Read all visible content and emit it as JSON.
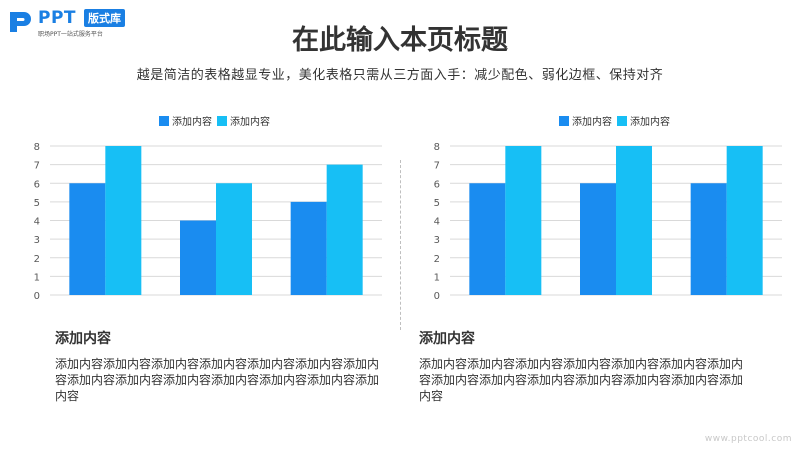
{
  "logo": {
    "brand": "PPT",
    "badge": "版式库",
    "tagline": "职场PPT一站式服务平台"
  },
  "title": "在此输入本页标题",
  "subtitle": "越是简洁的表格越显专业，美化表格只需从三方面入手：减少配色、弱化边框、保持对齐",
  "colors": {
    "series1": "#1a8cf0",
    "series2": "#17bff5",
    "grid": "#d9d9d9",
    "axis_text": "#595959"
  },
  "chart_data": [
    {
      "type": "bar",
      "categories": [
        "",
        "",
        ""
      ],
      "series": [
        {
          "name": "添加内容",
          "values": [
            6,
            4,
            5
          ]
        },
        {
          "name": "添加内容",
          "values": [
            8,
            6,
            7
          ]
        }
      ],
      "yticks": [
        "0",
        "1",
        "2",
        "3",
        "4",
        "5",
        "6",
        "7",
        "8"
      ],
      "ylim": [
        0,
        8
      ],
      "grid": true,
      "legend": "top-center"
    },
    {
      "type": "bar",
      "categories": [
        "",
        "",
        ""
      ],
      "series": [
        {
          "name": "添加内容",
          "values": [
            6,
            6,
            6
          ]
        },
        {
          "name": "添加内容",
          "values": [
            8,
            8,
            8
          ]
        }
      ],
      "yticks": [
        "0",
        "1",
        "2",
        "3",
        "4",
        "5",
        "6",
        "7",
        "8"
      ],
      "ylim": [
        0,
        8
      ],
      "grid": true,
      "legend": "top-center"
    }
  ],
  "text_blocks": [
    {
      "heading": "添加内容",
      "body": "添加内容添加内容添加内容添加内容添加内容添加内容添加内容添加内容添加内容添加内容添加内容添加内容添加内容添加内容"
    },
    {
      "heading": "添加内容",
      "body": "添加内容添加内容添加内容添加内容添加内容添加内容添加内容添加内容添加内容添加内容添加内容添加内容添加内容添加内容"
    }
  ],
  "watermark": "www.pptcool.com"
}
